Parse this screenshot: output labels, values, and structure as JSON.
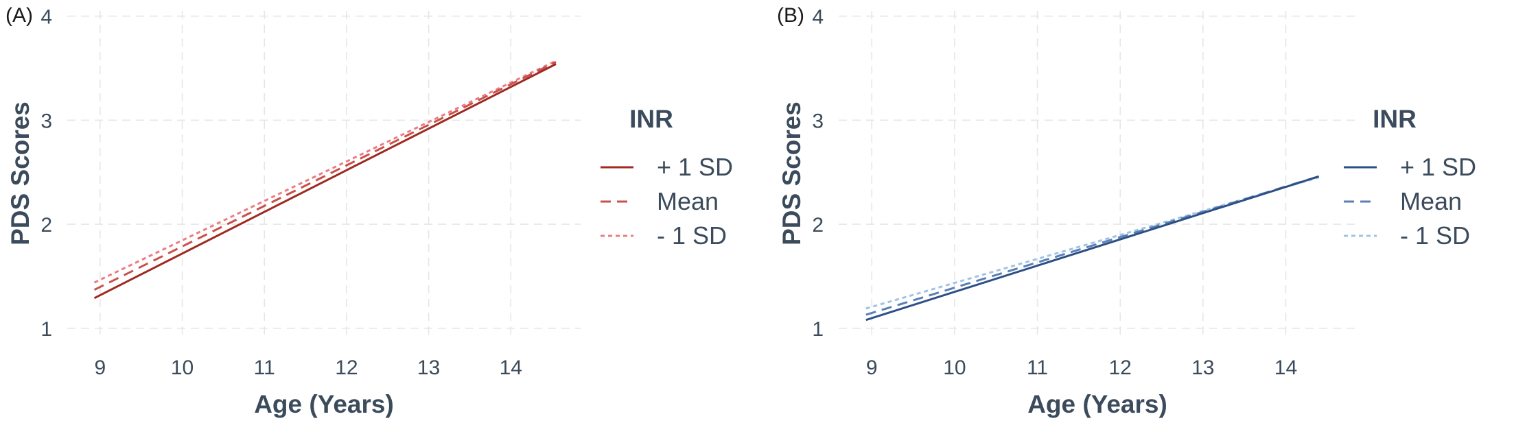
{
  "chart_data": [
    {
      "type": "line",
      "panel_label": "(A)",
      "xlabel": "Age (Years)",
      "ylabel": "PDS Scores",
      "xlim": [
        8.6,
        14.85
      ],
      "ylim": [
        0.9,
        4.05
      ],
      "xticks": [
        9,
        10,
        11,
        12,
        13,
        14
      ],
      "yticks": [
        1,
        2,
        3,
        4
      ],
      "grid": true,
      "legend": {
        "title": "INR",
        "placement": "right",
        "entries": [
          "+ 1 SD",
          "Mean",
          "- 1 SD"
        ]
      },
      "series": [
        {
          "name": "+ 1 SD",
          "color": "#9e2a22",
          "dash": "solid",
          "x": [
            8.93,
            14.55
          ],
          "y": [
            1.29,
            3.54
          ]
        },
        {
          "name": "Mean",
          "color": "#c9504a",
          "dash": "long-dash",
          "x": [
            8.93,
            14.55
          ],
          "y": [
            1.37,
            3.56
          ]
        },
        {
          "name": "- 1 SD",
          "color": "#ec7b82",
          "dash": "short-dash",
          "x": [
            8.93,
            14.55
          ],
          "y": [
            1.44,
            3.57
          ]
        }
      ]
    },
    {
      "type": "line",
      "panel_label": "(B)",
      "xlabel": "Age (Years)",
      "ylabel": "PDS Scores",
      "xlim": [
        8.6,
        14.85
      ],
      "ylim": [
        0.9,
        4.05
      ],
      "xticks": [
        9,
        10,
        11,
        12,
        13,
        14
      ],
      "yticks": [
        1,
        2,
        3,
        4
      ],
      "grid": true,
      "legend": {
        "title": "INR",
        "placement": "right",
        "entries": [
          "+ 1 SD",
          "Mean",
          "- 1 SD"
        ]
      },
      "series": [
        {
          "name": "+ 1 SD",
          "color": "#2c4f86",
          "dash": "solid",
          "x": [
            8.93,
            14.4
          ],
          "y": [
            1.08,
            2.46
          ]
        },
        {
          "name": "Mean",
          "color": "#5b7fb5",
          "dash": "long-dash",
          "x": [
            8.93,
            14.4
          ],
          "y": [
            1.13,
            2.46
          ]
        },
        {
          "name": "- 1 SD",
          "color": "#9fc3e6",
          "dash": "short-dash",
          "x": [
            8.93,
            14.4
          ],
          "y": [
            1.19,
            2.45
          ]
        }
      ]
    }
  ]
}
